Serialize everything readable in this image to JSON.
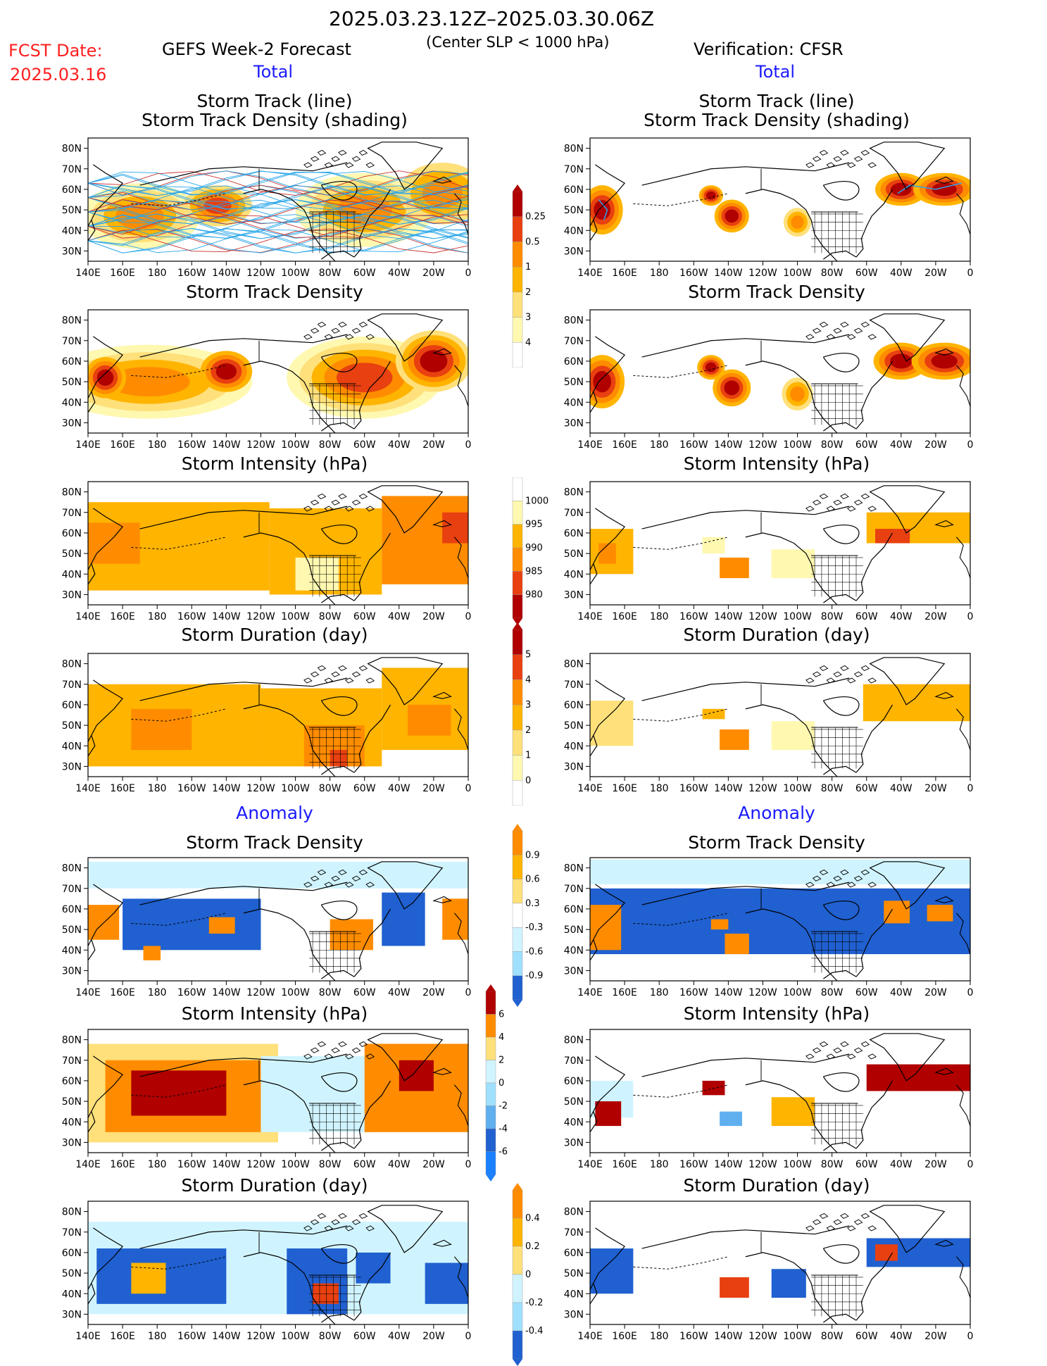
{
  "header": {
    "date_range": "2025.03.23.12Z–2025.03.30.06Z",
    "fcst_label": "FCST Date:",
    "fcst_date": "2025.03.16",
    "left_title": "GEFS Week-2 Forecast",
    "center_sub": "(Center SLP < 1000 hPa)",
    "right_title": "Verification: CFSR"
  },
  "sections": {
    "total": "Total",
    "anomaly": "Anomaly"
  },
  "panel_titles": {
    "track_line": "Storm Track (line)",
    "track_shading": "Storm Track Density (shading)",
    "density": "Storm Track Density",
    "intensity": "Storm Intensity (hPa)",
    "duration": "Storm Duration (day)"
  },
  "axes": {
    "lat_ticks": [
      "80N",
      "70N",
      "60N",
      "50N",
      "40N",
      "30N"
    ],
    "lon_ticks": [
      "140E",
      "160E",
      "180",
      "160W",
      "140W",
      "120W",
      "100W",
      "80W",
      "60W",
      "40W",
      "20W",
      "0"
    ]
  },
  "colors": {
    "warm": [
      "#fff8b0",
      "#ffe07a",
      "#ffb400",
      "#ff8c00",
      "#e84010",
      "#b00000"
    ],
    "cool": [
      "#d0f4ff",
      "#a0e0ff",
      "#60b0f0",
      "#2060d0",
      "#0040c0"
    ],
    "track_line": "#2aa6e8",
    "track_red": "#c83232"
  },
  "chart_data": [
    {
      "type": "heatmap",
      "title": "Storm Track Density",
      "colorbar_levels": [
        "0.25",
        "0.5",
        "1",
        "2",
        "3",
        "4"
      ],
      "xlabel": "",
      "ylabel": "",
      "x_range": [
        "140E",
        "0"
      ],
      "y_range": [
        "25N",
        "85N"
      ]
    },
    {
      "type": "heatmap",
      "title": "Storm Intensity (hPa)",
      "colorbar_levels": [
        "1000",
        "995",
        "990",
        "985",
        "980"
      ]
    },
    {
      "type": "heatmap",
      "title": "Storm Duration (day)",
      "colorbar_levels": [
        "5",
        "4",
        "3",
        "2",
        "1",
        "0"
      ]
    },
    {
      "type": "heatmap",
      "title": "Storm Track Density Anomaly",
      "colorbar_levels": [
        "0.9",
        "0.6",
        "0.3",
        "-0.3",
        "-0.6",
        "-0.9"
      ]
    },
    {
      "type": "heatmap",
      "title": "Storm Intensity Anomaly (hPa)",
      "colorbar_levels": [
        "6",
        "4",
        "2",
        "0",
        "-2",
        "-4",
        "-6"
      ]
    },
    {
      "type": "heatmap",
      "title": "Storm Duration Anomaly (day)",
      "colorbar_levels": [
        "0.4",
        "0.2",
        "0",
        "-0.2",
        "-0.4"
      ]
    }
  ]
}
